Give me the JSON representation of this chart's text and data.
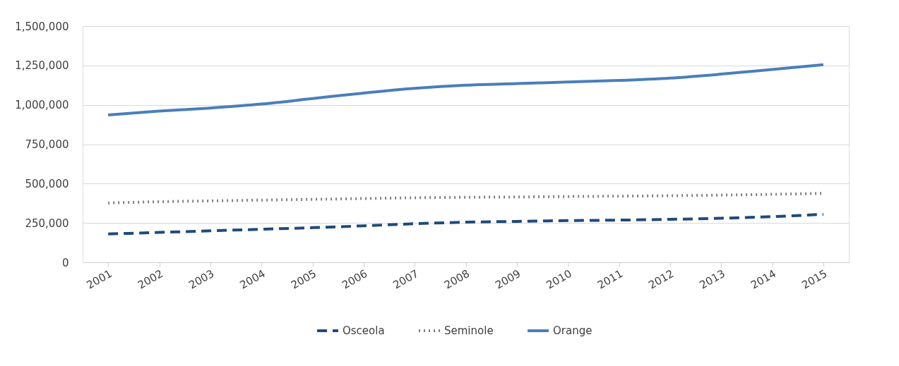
{
  "chart_data": {
    "type": "line",
    "categories": [
      "2001",
      "2002",
      "2003",
      "2004",
      "2005",
      "2006",
      "2007",
      "2008",
      "2009",
      "2010",
      "2011",
      "2012",
      "2013",
      "2014",
      "2015"
    ],
    "series": [
      {
        "name": "Osceola",
        "color": "#1f4a7c",
        "line_style": "dashed",
        "values": [
          180000,
          190000,
          200000,
          210000,
          220000,
          232000,
          245000,
          255000,
          260000,
          265000,
          268000,
          273000,
          280000,
          290000,
          305000
        ]
      },
      {
        "name": "Seminole",
        "color": "#808080",
        "line_style": "dotted",
        "values": [
          377000,
          385000,
          390000,
          395000,
          400000,
          405000,
          410000,
          413000,
          415000,
          418000,
          420000,
          423000,
          427000,
          432000,
          438000
        ]
      },
      {
        "name": "Orange",
        "color": "#4a7ebb",
        "line_style": "solid",
        "values": [
          936000,
          960000,
          980000,
          1005000,
          1040000,
          1075000,
          1105000,
          1125000,
          1135000,
          1145000,
          1155000,
          1170000,
          1195000,
          1225000,
          1255000
        ]
      }
    ],
    "ylim": [
      0,
      1500000
    ],
    "yticks": [
      0,
      {
        "value": 250000,
        "label": "250,000"
      },
      {
        "value": 500000,
        "label": "500,000"
      },
      {
        "value": 750000,
        "label": "750,000"
      },
      {
        "value": 1000000,
        "label": "1,000,000"
      },
      {
        "value": 1250000,
        "label": "1,250,000"
      },
      {
        "value": 1500000,
        "label": "1,500,000"
      }
    ],
    "grid": "y",
    "legend": "bottom",
    "marker": "none"
  }
}
